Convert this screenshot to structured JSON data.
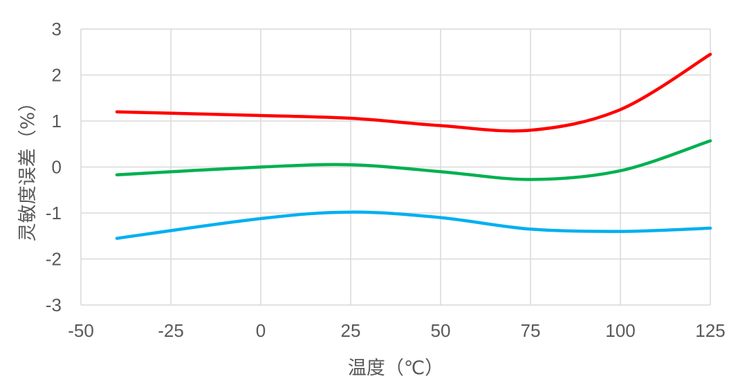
{
  "chart_data": {
    "type": "line",
    "title": "",
    "xlabel": "温度（℃）",
    "ylabel": "灵敏度误差（%）",
    "xlim": [
      -50,
      125
    ],
    "ylim": [
      -3,
      3
    ],
    "x_ticks": [
      -50,
      -25,
      0,
      25,
      50,
      75,
      100,
      125
    ],
    "y_ticks": [
      -3,
      -2,
      -1,
      0,
      1,
      2,
      3
    ],
    "x_tick_labels": [
      "-50",
      "-25",
      "0",
      "25",
      "50",
      "75",
      "100",
      "125"
    ],
    "y_tick_labels": [
      "-3",
      "-2",
      "-1",
      "0",
      "1",
      "2",
      "3"
    ],
    "grid": true,
    "smooth": true,
    "x": [
      -40,
      0,
      25,
      50,
      75,
      100,
      125
    ],
    "series": [
      {
        "color": "#ff0000",
        "values": [
          1.2,
          1.12,
          1.06,
          0.9,
          0.8,
          1.25,
          2.45
        ]
      },
      {
        "color": "#00b050",
        "values": [
          -0.17,
          0.0,
          0.05,
          -0.1,
          -0.27,
          -0.08,
          0.57
        ]
      },
      {
        "color": "#00b0f0",
        "values": [
          -1.55,
          -1.12,
          -0.98,
          -1.1,
          -1.35,
          -1.4,
          -1.33
        ]
      }
    ]
  }
}
